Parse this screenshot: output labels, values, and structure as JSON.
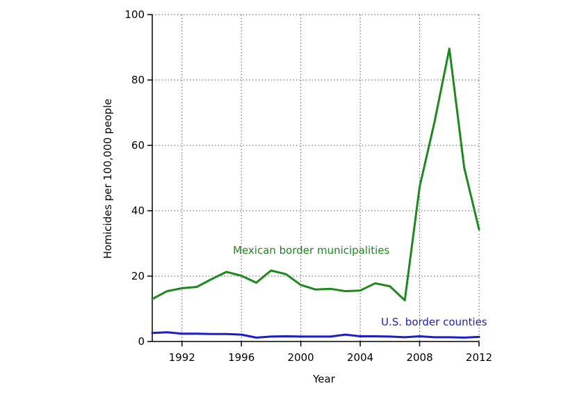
{
  "chart_data": {
    "type": "line",
    "xlabel": "Year",
    "ylabel": "Homicides per 100,000 people",
    "xlim": [
      1990,
      2012
    ],
    "ylim": [
      0,
      100
    ],
    "xticks": [
      1992,
      1996,
      2000,
      2004,
      2008,
      2012
    ],
    "yticks": [
      0,
      20,
      40,
      60,
      80,
      100
    ],
    "grid": true,
    "x": [
      1990,
      1991,
      1992,
      1993,
      1994,
      1995,
      1996,
      1997,
      1998,
      1999,
      2000,
      2001,
      2002,
      2003,
      2004,
      2005,
      2006,
      2007,
      2008,
      2009,
      2010,
      2011,
      2012
    ],
    "series": [
      {
        "name": "Mexican border municipalities",
        "color": "#1a8a1a",
        "values": [
          13.0,
          15.4,
          16.3,
          16.7,
          19.1,
          21.3,
          20.1,
          18.0,
          21.7,
          20.6,
          17.3,
          15.9,
          16.1,
          15.4,
          15.6,
          17.8,
          16.9,
          12.6,
          47.3,
          67.1,
          89.6,
          53.2,
          34.3
        ]
      },
      {
        "name": "U.S. border counties",
        "color": "#1a1ae6",
        "values": [
          2.6,
          2.8,
          2.4,
          2.4,
          2.3,
          2.3,
          2.1,
          1.2,
          1.5,
          1.6,
          1.5,
          1.5,
          1.5,
          2.1,
          1.6,
          1.6,
          1.5,
          1.3,
          1.6,
          1.3,
          1.3,
          1.2,
          1.4
        ]
      }
    ]
  }
}
